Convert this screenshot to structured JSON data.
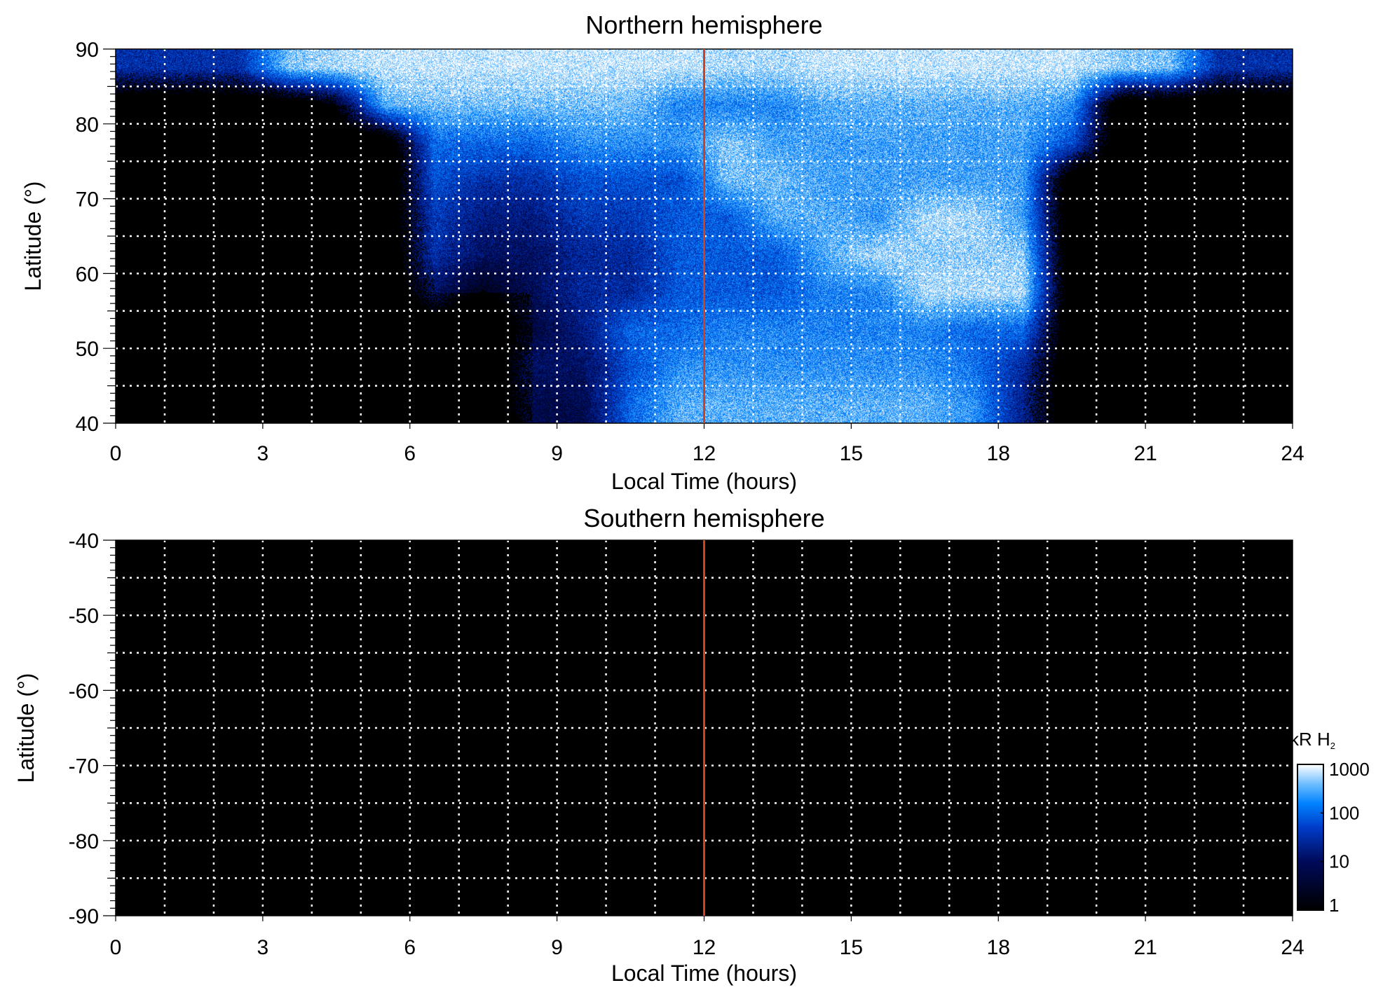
{
  "chart_data": [
    {
      "type": "heatmap",
      "title": "Northern hemisphere",
      "xlabel": "Local Time (hours)",
      "ylabel": "Latitude (°)",
      "xlim": [
        0,
        24
      ],
      "ylim": [
        40,
        90
      ],
      "xticks": [
        "0",
        "3",
        "6",
        "9",
        "12",
        "15",
        "18",
        "21",
        "24"
      ],
      "yticks": [
        "40",
        "50",
        "60",
        "70",
        "80",
        "90"
      ],
      "grid": true,
      "marker_line_local_time": 12,
      "value_units": "log10 kR H2 (approximate, 1-hour x 5° bins)",
      "lat_bins_top_to_bottom": [
        "85-90",
        "80-85",
        "75-80",
        "70-75",
        "65-70",
        "60-65",
        "55-60",
        "50-55",
        "45-50",
        "40-45"
      ],
      "values": [
        [
          1.5,
          1.5,
          1.5,
          2.6,
          2.8,
          2.9,
          2.9,
          2.9,
          2.9,
          2.9,
          2.9,
          2.9,
          2.8,
          2.8,
          2.9,
          2.9,
          2.9,
          2.9,
          2.9,
          2.9,
          2.7,
          2.6,
          1.5,
          1.5
        ],
        [
          0,
          0,
          0,
          0,
          0.5,
          2.5,
          2.6,
          2.6,
          2.6,
          2.6,
          2.6,
          2.2,
          2.2,
          2.2,
          2.5,
          2.5,
          2.5,
          2.5,
          2.5,
          2.3,
          0,
          0,
          0,
          0
        ],
        [
          0,
          0,
          0,
          0,
          0,
          0,
          2.0,
          2.0,
          2.0,
          2.3,
          2.3,
          2.3,
          2.7,
          2.4,
          2.4,
          2.4,
          2.4,
          2.4,
          2.4,
          1.8,
          0,
          0,
          0,
          0
        ],
        [
          0,
          0,
          0,
          0,
          0,
          0,
          1.8,
          1.5,
          1.5,
          1.8,
          1.8,
          1.8,
          2.6,
          2.6,
          2.4,
          2.4,
          2.4,
          2.4,
          2.4,
          0,
          0,
          0,
          0,
          0
        ],
        [
          0,
          0,
          0,
          0,
          0,
          0,
          1.6,
          1.2,
          1.2,
          1.6,
          1.6,
          1.9,
          1.9,
          2.5,
          2.5,
          2.3,
          2.8,
          2.8,
          2.4,
          0,
          0,
          0,
          0,
          0
        ],
        [
          0,
          0,
          0,
          0,
          0,
          0,
          1.5,
          1.0,
          1.0,
          1.4,
          1.4,
          1.9,
          1.9,
          1.9,
          2.5,
          2.8,
          2.7,
          2.7,
          2.7,
          0,
          0,
          0,
          0,
          0
        ],
        [
          0,
          0,
          0,
          0,
          0,
          0,
          1.0,
          0.3,
          0.9,
          1.4,
          1.4,
          1.9,
          1.9,
          1.9,
          2.2,
          2.2,
          2.8,
          2.8,
          2.8,
          0,
          0,
          0,
          0,
          0
        ],
        [
          0,
          0,
          0,
          0,
          0,
          0,
          0,
          0,
          0.7,
          1.2,
          2.0,
          2.0,
          2.2,
          2.2,
          2.2,
          2.2,
          2.2,
          2.0,
          2.0,
          0,
          0,
          0,
          0,
          0
        ],
        [
          0,
          0,
          0,
          0,
          0,
          0,
          0,
          0,
          1.0,
          1.0,
          1.8,
          2.3,
          2.3,
          2.3,
          2.3,
          2.3,
          2.3,
          2.1,
          1.4,
          0,
          0,
          0,
          0,
          0
        ],
        [
          0,
          0,
          0,
          0,
          0,
          0,
          0,
          0,
          0.8,
          0.8,
          2.0,
          2.5,
          2.5,
          2.5,
          2.5,
          2.5,
          2.5,
          2.3,
          1.3,
          0,
          0,
          0,
          0,
          0
        ]
      ]
    },
    {
      "type": "heatmap",
      "title": "Southern hemisphere",
      "xlabel": "Local Time (hours)",
      "ylabel": "Latitude (°)",
      "xlim": [
        0,
        24
      ],
      "ylim": [
        -90,
        -40
      ],
      "xticks": [
        "0",
        "3",
        "6",
        "9",
        "12",
        "15",
        "18",
        "21",
        "24"
      ],
      "yticks": [
        "-40",
        "-50",
        "-60",
        "-70",
        "-80",
        "-90"
      ],
      "grid": true,
      "marker_line_local_time": 12,
      "values": "all no emission (black)"
    }
  ],
  "colorbar": {
    "label": "kR H",
    "label_sub": "2",
    "scale": "log",
    "ticks": [
      "1",
      "10",
      "100",
      "1000"
    ],
    "range": [
      1,
      1000
    ]
  },
  "colors": {
    "marker_line": "#d4401a",
    "grid": "#ffffff",
    "background": "#000000"
  }
}
